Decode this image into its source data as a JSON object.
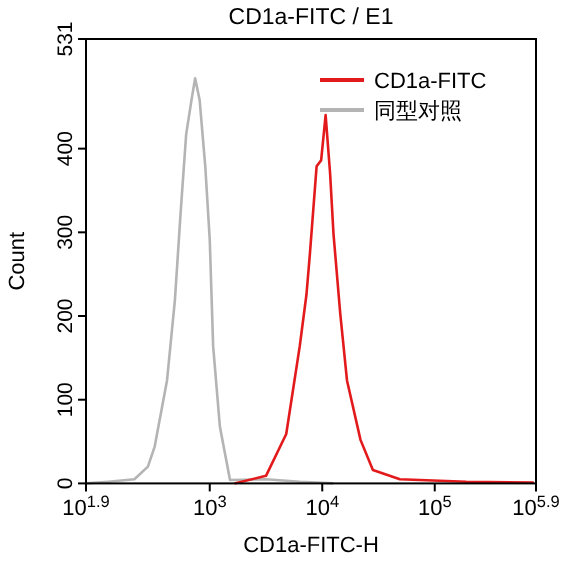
{
  "chart_data": {
    "type": "line",
    "title": "CD1a-FITC / E1",
    "xlabel": "CD1a-FITC-H",
    "ylabel": "Count",
    "log": "x",
    "legend": "top right",
    "marker": "none",
    "line_style": "solid",
    "grid": false,
    "xlim": [
      79.43,
      794328
    ],
    "ylim": [
      0,
      531
    ],
    "xticks": [
      {
        "value": 79.43,
        "label": "10$^{1.9}$"
      },
      {
        "value": 1000,
        "label": "10$^{3}$"
      },
      {
        "value": 10000,
        "label": "10$^{4}$"
      },
      {
        "value": 100000,
        "label": "10$^{5}$"
      },
      {
        "value": 794328,
        "label": "10$^{5.9}$"
      }
    ],
    "yticks": [
      0,
      100,
      200,
      300,
      400,
      531
    ],
    "series": [
      {
        "name": "CD1a-FITC",
        "color": "#e31a1c",
        "x": [
          1660,
          3162,
          4786,
          6310,
          7244,
          7762,
          8913,
          9772,
          10715,
          11749,
          12589,
          14454,
          16596,
          21878,
          28184,
          48978,
          190546,
          758578
        ],
        "values": [
          0,
          9,
          59,
          164,
          226,
          274,
          379,
          386,
          440,
          370,
          298,
          203,
          123,
          52,
          16,
          5,
          2,
          1
        ]
      },
      {
        "name": "同型对照",
        "color": "#b4b4b4",
        "x": [
          79.43,
          126,
          214,
          282,
          324,
          417,
          490,
          550,
          617,
          692,
          741,
          813,
          912,
          1000,
          1072,
          1230,
          1514,
          3162,
          6310,
          12589
        ],
        "values": [
          0,
          2,
          5,
          20,
          44,
          123,
          219,
          322,
          417,
          460,
          484,
          458,
          379,
          291,
          164,
          68,
          4,
          5,
          2,
          0
        ]
      }
    ]
  }
}
